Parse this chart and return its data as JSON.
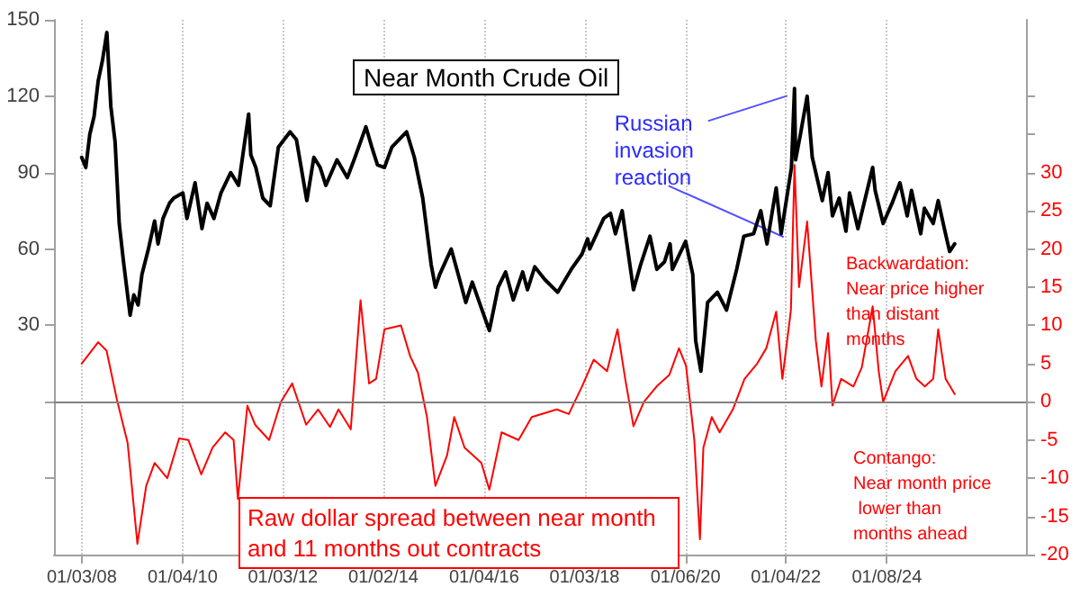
{
  "chart_data": {
    "type": "line",
    "title": "Near Month Crude Oil",
    "x": [
      "2008-01-02",
      "2008-02-01",
      "2008-03-01",
      "2008-04-01",
      "2008-05-01",
      "2008-06-01",
      "2008-07-03",
      "2008-08-01",
      "2008-09-01",
      "2008-10-01",
      "2008-11-01",
      "2008-12-19",
      "2009-01-15",
      "2009-02-15",
      "2009-03-15",
      "2009-05-01",
      "2009-06-15",
      "2009-07-10",
      "2009-08-15",
      "2009-10-01",
      "2009-11-01",
      "2010-01-06",
      "2010-02-05",
      "2010-04-05",
      "2010-05-25",
      "2010-07-01",
      "2010-08-20",
      "2010-10-10",
      "2010-12-20",
      "2011-02-15",
      "2011-04-29",
      "2011-05-15",
      "2011-06-20",
      "2011-08-10",
      "2011-10-03",
      "2011-12-01",
      "2012-02-24",
      "2012-04-10",
      "2012-06-25",
      "2012-08-15",
      "2012-09-30",
      "2012-11-10",
      "2013-01-30",
      "2013-04-15",
      "2013-06-10",
      "2013-08-28",
      "2013-10-10",
      "2013-11-20",
      "2014-01-10",
      "2014-03-05",
      "2014-06-20",
      "2014-08-15",
      "2014-10-15",
      "2014-12-15",
      "2015-01-15",
      "2015-02-15",
      "2015-05-10",
      "2015-07-10",
      "2015-08-24",
      "2015-10-10",
      "2015-12-20",
      "2016-02-11",
      "2016-04-15",
      "2016-06-08",
      "2016-08-03",
      "2016-10-10",
      "2016-11-14",
      "2017-01-06",
      "2017-03-20",
      "2017-06-21",
      "2017-09-28",
      "2017-12-15",
      "2018-01-25",
      "2018-02-09",
      "2018-05-22",
      "2018-07-10",
      "2018-08-15",
      "2018-10-03",
      "2018-12-24",
      "2019-02-15",
      "2019-04-23",
      "2019-06-12",
      "2019-08-07",
      "2019-09-16",
      "2019-10-03",
      "2020-01-07",
      "2020-02-28",
      "2020-03-20",
      "2020-04-27",
      "2020-06-15",
      "2020-08-25",
      "2020-10-30",
      "2021-01-12",
      "2021-03-05",
      "2021-05-15",
      "2021-07-06",
      "2021-08-20",
      "2021-10-26",
      "2021-12-01",
      "2022-02-14",
      "2022-03-08",
      "2022-03-16",
      "2022-04-20",
      "2022-06-08",
      "2022-07-15",
      "2022-09-26",
      "2022-11-07",
      "2022-12-09",
      "2023-01-27",
      "2023-03-17",
      "2023-04-12",
      "2023-06-12",
      "2023-09-27",
      "2023-10-15",
      "2023-12-12",
      "2024-02-15",
      "2024-04-12",
      "2024-06-04",
      "2024-07-05",
      "2024-09-10",
      "2024-10-07",
      "2024-12-10",
      "2025-01-15",
      "2025-03-05",
      "2025-04-08",
      "2025-05-15"
    ],
    "series": [
      {
        "color": "#000000",
        "values": [
          96,
          92,
          105,
          112,
          126,
          134,
          145,
          116,
          102,
          70,
          55,
          34,
          42,
          38,
          50,
          60,
          71,
          62,
          72,
          78,
          80,
          82,
          72,
          86,
          68,
          78,
          72,
          82,
          90,
          85,
          113,
          97,
          92,
          80,
          77,
          100,
          106,
          103,
          79,
          96,
          92,
          85,
          95,
          88,
          96,
          108,
          100,
          93,
          92,
          100,
          106,
          96,
          80,
          54,
          45,
          50,
          60,
          48,
          39,
          47,
          36,
          28,
          45,
          51,
          40,
          51,
          44,
          53,
          48,
          43,
          52,
          58,
          64,
          60,
          72,
          74,
          66,
          75,
          44,
          54,
          65,
          52,
          55,
          62,
          52,
          63,
          50,
          24,
          12,
          39,
          43,
          36,
          52,
          65,
          66,
          75,
          62,
          84,
          66,
          92,
          123,
          95,
          105,
          120,
          96,
          79,
          90,
          73,
          80,
          67,
          82,
          68,
          92,
          83,
          70,
          78,
          86,
          73,
          83,
          66,
          76,
          70,
          79,
          67,
          59,
          62
        ]
      },
      {
        "color": "#ff0000",
        "axis": "y2",
        "x": [
          "2008-01-02",
          "2008-05-01",
          "2008-07-01",
          "2008-09-15",
          "2008-12-01",
          "2009-02-10",
          "2009-04-15",
          "2009-06-15",
          "2009-09-15",
          "2009-12-10",
          "2010-02-15",
          "2010-05-20",
          "2010-08-10",
          "2010-11-10",
          "2011-01-10",
          "2011-02-10",
          "2011-04-20",
          "2011-06-15",
          "2011-09-25",
          "2011-12-20",
          "2012-03-10",
          "2012-06-20",
          "2012-09-15",
          "2012-12-10",
          "2013-02-10",
          "2013-05-10",
          "2013-07-20",
          "2013-09-20",
          "2013-11-10",
          "2014-01-10",
          "2014-05-10",
          "2014-07-15",
          "2014-09-10",
          "2014-11-15",
          "2015-01-15",
          "2015-04-10",
          "2015-06-01",
          "2015-08-15",
          "2015-12-15",
          "2016-02-11",
          "2016-05-10",
          "2016-09-10",
          "2016-12-15",
          "2017-06-15",
          "2017-09-10",
          "2017-12-15",
          "2018-03-10",
          "2018-06-15",
          "2018-08-30",
          "2018-10-25",
          "2018-12-24",
          "2019-03-10",
          "2019-06-10",
          "2019-09-10",
          "2019-11-20",
          "2020-01-10",
          "2020-03-10",
          "2020-04-20",
          "2020-05-15",
          "2020-07-15",
          "2020-09-10",
          "2020-12-15",
          "2021-03-10",
          "2021-06-10",
          "2021-08-15",
          "2021-10-26",
          "2021-12-10",
          "2022-02-10",
          "2022-03-08",
          "2022-04-10",
          "2022-06-08",
          "2022-08-10",
          "2022-09-20",
          "2022-11-07",
          "2022-12-09",
          "2023-02-10",
          "2023-05-10",
          "2023-07-10",
          "2023-09-27",
          "2023-11-10",
          "2023-12-12",
          "2024-03-10",
          "2024-06-10",
          "2024-08-10",
          "2024-10-10",
          "2024-12-10",
          "2025-01-15",
          "2025-03-10",
          "2025-05-15"
        ],
        "values": [
          5,
          7.8,
          6.7,
          0.2,
          -5.4,
          -18.6,
          -11,
          -8,
          -10,
          -4.8,
          -5,
          -9.5,
          -6,
          -4,
          -5,
          -12.7,
          -0.5,
          -3,
          -5,
          0,
          2.4,
          -3,
          -1,
          -3.3,
          -1,
          -3.6,
          13.3,
          2.4,
          3,
          9.5,
          10,
          6,
          3.8,
          -2,
          -11,
          -7,
          -2,
          -6,
          -8,
          -11.5,
          -4,
          -5,
          -2,
          -1,
          -1.6,
          2,
          5.5,
          4,
          9.5,
          3,
          -3.2,
          0,
          2,
          3.5,
          7,
          4.7,
          -5,
          -18,
          -6,
          -2,
          -4,
          -1,
          3,
          5,
          7,
          11.8,
          3,
          12,
          31,
          15,
          23.6,
          8,
          2,
          9,
          -0.5,
          3,
          2,
          4.5,
          12.5,
          4,
          0,
          4,
          6,
          3,
          2,
          3,
          9.5,
          3,
          1
        ]
      }
    ],
    "xlim": [
      "2007-06-15",
      "2026-10-15"
    ],
    "xticks": [
      {
        "value": "2008-01-03",
        "label": "01/03/08"
      },
      {
        "value": "2010-01-04",
        "label": "01/04/10"
      },
      {
        "value": "2012-01-03",
        "label": "01/03/12"
      },
      {
        "value": "2014-01-02",
        "label": "01/02/14"
      },
      {
        "value": "2016-01-04",
        "label": "01/04/16"
      },
      {
        "value": "2018-01-03",
        "label": "01/03/18"
      },
      {
        "value": "2020-01-06",
        "label": "01/06/20"
      },
      {
        "value": "2022-01-04",
        "label": "01/04/22"
      },
      {
        "value": "2024-01-08",
        "label": "01/08/24"
      }
    ],
    "ylim": [
      -60,
      150
    ],
    "yticks": [
      {
        "value": -30,
        "label": null
      },
      {
        "value": 0,
        "label": null
      },
      30,
      60,
      90,
      120,
      150
    ],
    "y2lim": [
      -20,
      50
    ],
    "y2ticks": [
      -20,
      -15,
      -10,
      -5,
      0,
      5,
      10,
      15,
      20,
      25,
      30,
      {
        "value": 35,
        "label": null
      },
      {
        "value": 40,
        "label": null
      }
    ],
    "ref_lines": [
      {
        "axis": "y2",
        "value": 0,
        "color": "#808080"
      }
    ],
    "grid": "x",
    "annotations": [
      {
        "text": "Russian invasion reaction",
        "x": "2022-03-08",
        "y": 123
      },
      "Backwardation: Near price higher than distant months",
      "Contango: Near month price lower than months ahead",
      "Raw dollar spread between near month and 11 months out contracts"
    ]
  }
}
